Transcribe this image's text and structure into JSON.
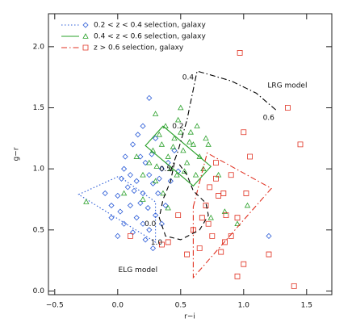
{
  "chart_data": {
    "type": "scatter",
    "xlabel": "r−i",
    "ylabel": "g−r",
    "xlim": [
      -0.55,
      1.7
    ],
    "ylim": [
      -0.03,
      2.27
    ],
    "xticks": [
      {
        "value": -0.5,
        "label": "−0.5"
      },
      {
        "value": 0,
        "label": "0.0"
      },
      {
        "value": 0.5,
        "label": "0.5"
      },
      {
        "value": 1,
        "label": "1.0"
      },
      {
        "value": 1.5,
        "label": "1.5"
      }
    ],
    "yticks": [
      {
        "value": 0,
        "label": "0.0"
      },
      {
        "value": 0.5,
        "label": "0.5"
      },
      {
        "value": 1,
        "label": "1.0"
      },
      {
        "value": 1.5,
        "label": "1.5"
      },
      {
        "value": 2,
        "label": "2.0"
      }
    ],
    "legend": "upper left",
    "series": [
      {
        "name": "0.2 < z < 0.4 selection, galaxy",
        "color": "#2a5bd7",
        "marker": "diamond",
        "linestyle": "dotted",
        "x": [
          0.25,
          0.2,
          0.3,
          0.12,
          0.18,
          0.22,
          0.05,
          0.1,
          0.15,
          0.25,
          0.28,
          0.35,
          0.4,
          0.32,
          0.2,
          0.08,
          0.0,
          -0.05,
          0.02,
          0.1,
          0.15,
          0.2,
          0.25,
          0.3,
          0.38,
          0.42,
          0.45,
          0.05,
          0.0,
          -0.05,
          0.12,
          0.22,
          0.28,
          0.18,
          0.24,
          0.35,
          0.06,
          0.16,
          0.27,
          0.33,
          1.2,
          0.48,
          0.13,
          0.03,
          -0.1
        ],
        "y": [
          1.58,
          1.35,
          1.25,
          1.2,
          1.1,
          1.05,
          1.0,
          0.95,
          0.9,
          0.95,
          0.88,
          1.0,
          1.05,
          0.8,
          0.8,
          0.85,
          0.78,
          0.7,
          0.65,
          0.7,
          0.6,
          0.55,
          0.5,
          0.62,
          0.7,
          0.9,
          1.15,
          0.55,
          0.45,
          0.6,
          0.48,
          0.42,
          0.35,
          0.72,
          0.68,
          0.55,
          1.1,
          1.28,
          1.12,
          0.92,
          0.45,
          0.98,
          0.82,
          0.92,
          0.8
        ],
        "selection": {
          "x": [
            -0.31,
            0.01,
            0.3,
            0.3
          ],
          "y": [
            0.79,
            0.94,
            0.73,
            0.4
          ]
        }
      },
      {
        "name": "0.4 < z < 0.6 selection, galaxy",
        "color": "#2aa02a",
        "marker": "triangle",
        "linestyle": "solid",
        "x": [
          -0.25,
          1.03,
          0.7,
          0.3,
          0.48,
          0.2,
          0.6,
          0.5,
          0.35,
          0.4,
          0.42,
          0.55,
          0.65,
          0.25,
          0.3,
          0.45,
          0.38,
          0.52,
          0.58,
          0.62,
          0.33,
          0.28,
          0.47,
          0.68,
          0.15,
          0.72,
          0.8,
          0.85,
          0.95,
          0.36,
          0.4,
          0.2,
          0.05,
          0.44,
          0.53,
          0.57,
          0.31,
          0.74,
          0.63,
          0.5
        ],
        "y": [
          0.73,
          0.7,
          1.25,
          1.45,
          1.4,
          0.95,
          1.2,
          1.3,
          1.2,
          1.1,
          1.0,
          1.05,
          1.1,
          1.05,
          0.9,
          1.25,
          1.35,
          1.15,
          1.3,
          0.95,
          1.28,
          1.15,
          0.95,
          1.0,
          1.1,
          1.2,
          0.95,
          0.65,
          0.55,
          0.8,
          0.68,
          0.75,
          0.8,
          1.18,
          0.98,
          1.22,
          1.02,
          0.6,
          1.35,
          1.5
        ],
        "selection": {
          "x": [
            0.22,
            0.36,
            0.74,
            0.6
          ],
          "y": [
            1.19,
            1.35,
            1.02,
            0.86
          ]
        }
      },
      {
        "name": "z > 0.6 selection, galaxy",
        "color": "#e03020",
        "marker": "square",
        "linestyle": "dashdot",
        "x": [
          0.97,
          1.45,
          1.35,
          1.0,
          1.05,
          0.78,
          0.73,
          0.8,
          0.84,
          0.86,
          0.95,
          0.67,
          0.72,
          0.9,
          0.75,
          1.2,
          1.0,
          0.95,
          1.4,
          0.65,
          0.82,
          0.48,
          0.4,
          0.35,
          0.55,
          0.7,
          0.9,
          0.85,
          0.1,
          0.78,
          1.02,
          0.6
        ],
        "y": [
          1.95,
          1.2,
          1.5,
          1.3,
          1.1,
          1.05,
          0.85,
          0.78,
          0.8,
          0.62,
          0.6,
          0.6,
          0.55,
          0.45,
          0.45,
          0.3,
          0.22,
          0.12,
          0.04,
          0.35,
          0.32,
          0.62,
          0.4,
          0.38,
          0.3,
          0.7,
          0.95,
          0.4,
          0.45,
          0.92,
          0.8,
          0.5
        ],
        "selection": {
          "x": [
            0.6,
            0.71,
            1.22,
            0.6
          ],
          "y": [
            0.69,
            1.13,
            0.84,
            0.11
          ]
        }
      }
    ],
    "models": [
      {
        "name": "LRG model",
        "color": "#000000",
        "linestyle": "dashdot",
        "x": [
          0.42,
          0.48,
          0.55,
          0.6,
          0.63,
          0.7,
          0.9,
          1.1,
          1.27
        ],
        "y": [
          0.98,
          1.15,
          1.4,
          1.65,
          1.8,
          1.78,
          1.72,
          1.62,
          1.47
        ],
        "z_labels": [
          null,
          null,
          "0.2",
          null,
          "0.4",
          null,
          null,
          null,
          "0.6"
        ]
      },
      {
        "name": "ELG model",
        "color": "#000000",
        "linestyle": "dashed",
        "x": [
          0.45,
          0.42,
          0.36,
          0.33,
          0.38,
          0.5,
          0.65,
          0.72,
          0.7,
          0.6,
          0.55,
          0.48
        ],
        "y": [
          1.05,
          0.9,
          0.75,
          0.6,
          0.45,
          0.42,
          0.5,
          0.62,
          0.72,
          0.82,
          0.95,
          1.05
        ],
        "z_labels": [
          "0.5",
          null,
          null,
          "0.0",
          "1.0",
          null,
          null,
          null,
          null,
          null,
          null,
          null
        ]
      }
    ]
  }
}
